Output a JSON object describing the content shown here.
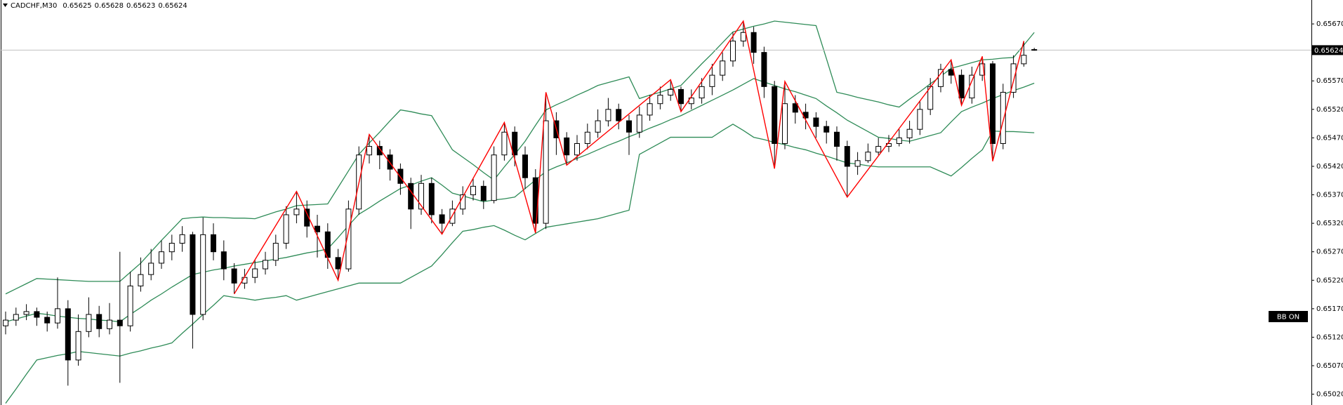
{
  "chart_data": {
    "type": "candlestick",
    "symbol": "CADCHF,M30",
    "indicator_label": "BB ON",
    "up_color": "#ffffff",
    "down_color": "#000000",
    "wick_color": "#000000",
    "open": [
      0.6514,
      0.6515,
      0.6516,
      0.65165,
      0.65155,
      0.65145,
      0.6517,
      0.6508,
      0.6513,
      0.6516,
      0.65135,
      0.6515,
      0.6514,
      0.6521,
      0.6523,
      0.6525,
      0.6527,
      0.65285,
      0.653,
      0.6516,
      0.653,
      0.6527,
      0.6524,
      0.65215,
      0.65225,
      0.6524,
      0.65255,
      0.65285,
      0.65335,
      0.65345,
      0.65315,
      0.65305,
      0.6526,
      0.6524,
      0.65345,
      0.6544,
      0.65455,
      0.6544,
      0.65415,
      0.6539,
      0.65345,
      0.6539,
      0.65335,
      0.6532,
      0.65345,
      0.6537,
      0.65385,
      0.6536,
      0.6544,
      0.6548,
      0.6544,
      0.654,
      0.6532,
      0.655,
      0.6547,
      0.6544,
      0.6546,
      0.6548,
      0.655,
      0.6552,
      0.655,
      0.6548,
      0.6551,
      0.6553,
      0.65545,
      0.65555,
      0.6553,
      0.6554,
      0.6556,
      0.6558,
      0.65605,
      0.6564,
      0.65655,
      0.6562,
      0.6556,
      0.6546,
      0.6553,
      0.65515,
      0.65505,
      0.6549,
      0.6548,
      0.65455,
      0.6542,
      0.6543,
      0.65445,
      0.65455,
      0.6546,
      0.6547,
      0.65485,
      0.6552,
      0.6556,
      0.6559,
      0.6558,
      0.6554,
      0.6558,
      0.656,
      0.6546,
      0.6555,
      0.656,
      0.65625
    ],
    "high": [
      0.65165,
      0.65172,
      0.65178,
      0.65172,
      0.65165,
      0.65225,
      0.65185,
      0.6516,
      0.6519,
      0.65175,
      0.6518,
      0.6527,
      0.65235,
      0.6526,
      0.65275,
      0.6529,
      0.653,
      0.65315,
      0.65305,
      0.6533,
      0.6532,
      0.6529,
      0.6525,
      0.6524,
      0.65255,
      0.6527,
      0.653,
      0.6535,
      0.65376,
      0.6536,
      0.65335,
      0.6532,
      0.65275,
      0.6536,
      0.65455,
      0.65476,
      0.65465,
      0.6545,
      0.65425,
      0.654,
      0.65405,
      0.654,
      0.65345,
      0.6536,
      0.65385,
      0.654,
      0.65395,
      0.65455,
      0.65497,
      0.6549,
      0.65455,
      0.65415,
      0.6555,
      0.65515,
      0.6548,
      0.65475,
      0.65495,
      0.6552,
      0.6554,
      0.6553,
      0.6551,
      0.65525,
      0.65545,
      0.6556,
      0.65572,
      0.6556,
      0.65555,
      0.65575,
      0.656,
      0.6562,
      0.65655,
      0.65675,
      0.65665,
      0.6563,
      0.6557,
      0.65569,
      0.65545,
      0.6553,
      0.65515,
      0.655,
      0.6549,
      0.65465,
      0.65445,
      0.6546,
      0.6547,
      0.65475,
      0.65485,
      0.655,
      0.65535,
      0.65575,
      0.656,
      0.65607,
      0.6559,
      0.65595,
      0.65613,
      0.65605,
      0.65565,
      0.65615,
      0.6564,
      0.65628
    ],
    "low": [
      0.65125,
      0.6514,
      0.6515,
      0.6514,
      0.6513,
      0.65135,
      0.65035,
      0.6507,
      0.6512,
      0.6512,
      0.65125,
      0.6504,
      0.6513,
      0.652,
      0.6522,
      0.6524,
      0.65255,
      0.6527,
      0.651,
      0.6515,
      0.65255,
      0.6522,
      0.65196,
      0.65205,
      0.65215,
      0.6523,
      0.65245,
      0.65275,
      0.6532,
      0.65295,
      0.6526,
      0.6524,
      0.6522,
      0.65235,
      0.65335,
      0.65425,
      0.65415,
      0.65395,
      0.6537,
      0.6531,
      0.65335,
      0.6532,
      0.65301,
      0.65315,
      0.65335,
      0.6536,
      0.65345,
      0.65355,
      0.6543,
      0.6542,
      0.6538,
      0.65303,
      0.6531,
      0.6544,
      0.65422,
      0.6543,
      0.6545,
      0.6547,
      0.6549,
      0.65485,
      0.6544,
      0.6547,
      0.655,
      0.6552,
      0.65535,
      0.65516,
      0.6552,
      0.6553,
      0.65545,
      0.6557,
      0.65595,
      0.6563,
      0.656,
      0.6554,
      0.65416,
      0.6545,
      0.65495,
      0.65485,
      0.6547,
      0.6546,
      0.6543,
      0.65366,
      0.65405,
      0.65426,
      0.6544,
      0.65445,
      0.65455,
      0.6546,
      0.65475,
      0.6551,
      0.6555,
      0.65565,
      0.65527,
      0.6553,
      0.6557,
      0.65429,
      0.6545,
      0.6554,
      0.65595,
      0.65623
    ],
    "close": [
      0.6515,
      0.6516,
      0.65165,
      0.65155,
      0.65145,
      0.6517,
      0.6508,
      0.6513,
      0.6516,
      0.65135,
      0.6515,
      0.6514,
      0.6521,
      0.6523,
      0.6525,
      0.6527,
      0.65285,
      0.653,
      0.6516,
      0.653,
      0.6527,
      0.6524,
      0.65215,
      0.65225,
      0.6524,
      0.65255,
      0.65285,
      0.65335,
      0.65345,
      0.65315,
      0.65305,
      0.6526,
      0.6524,
      0.65345,
      0.6544,
      0.65455,
      0.6544,
      0.65415,
      0.6539,
      0.65345,
      0.6539,
      0.65335,
      0.6532,
      0.65345,
      0.6537,
      0.65385,
      0.6536,
      0.6544,
      0.6548,
      0.6544,
      0.654,
      0.6532,
      0.655,
      0.6547,
      0.6544,
      0.6546,
      0.6548,
      0.655,
      0.6552,
      0.655,
      0.6548,
      0.6551,
      0.6553,
      0.65545,
      0.65555,
      0.6553,
      0.6554,
      0.6556,
      0.6558,
      0.65605,
      0.6564,
      0.65655,
      0.6562,
      0.6556,
      0.6546,
      0.6553,
      0.65515,
      0.65505,
      0.6549,
      0.6548,
      0.65455,
      0.6542,
      0.6543,
      0.65445,
      0.65455,
      0.6546,
      0.6547,
      0.65485,
      0.6552,
      0.6556,
      0.6559,
      0.6558,
      0.6554,
      0.6558,
      0.656,
      0.6546,
      0.6555,
      0.656,
      0.65615,
      0.65624
    ],
    "bands": {
      "color": "#2e8b57",
      "upper": [
        0.65196,
        0.65205,
        0.65214,
        0.65223,
        0.65222,
        0.65221,
        0.6522,
        0.65219,
        0.65218,
        0.65218,
        0.65218,
        0.65218,
        0.65234,
        0.6525,
        0.6527,
        0.6529,
        0.65309,
        0.65328,
        0.6533,
        0.65331,
        0.6533,
        0.6533,
        0.65329,
        0.65329,
        0.65328,
        0.65334,
        0.6534,
        0.65345,
        0.65351,
        0.65352,
        0.65353,
        0.65354,
        0.65383,
        0.65412,
        0.65441,
        0.65461,
        0.6548,
        0.655,
        0.65519,
        0.65516,
        0.65512,
        0.65509,
        0.65479,
        0.65449,
        0.65436,
        0.65423,
        0.65409,
        0.65396,
        0.65419,
        0.65441,
        0.65464,
        0.65492,
        0.65519,
        0.65528,
        0.65536,
        0.65545,
        0.65553,
        0.65562,
        0.65567,
        0.65572,
        0.65577,
        0.65539,
        0.65545,
        0.6555,
        0.65556,
        0.65562,
        0.65581,
        0.656,
        0.65618,
        0.65637,
        0.65656,
        0.65661,
        0.65666,
        0.6567,
        0.65675,
        0.65673,
        0.65671,
        0.65669,
        0.65667,
        0.65609,
        0.6555,
        0.65546,
        0.65541,
        0.65537,
        0.65533,
        0.65528,
        0.65524,
        0.65538,
        0.65551,
        0.65565,
        0.65578,
        0.65592,
        0.65597,
        0.65602,
        0.65607,
        0.65608,
        0.6561,
        0.65611,
        0.65633,
        0.65655
      ],
      "middle": [
        0.65147,
        0.65152,
        0.65157,
        0.65162,
        0.6516,
        0.65157,
        0.65155,
        0.65153,
        0.65152,
        0.6515,
        0.65149,
        0.65147,
        0.6516,
        0.65172,
        0.65185,
        0.65196,
        0.65208,
        0.65219,
        0.6523,
        0.65234,
        0.65238,
        0.65241,
        0.65245,
        0.65248,
        0.65251,
        0.65254,
        0.65257,
        0.6526,
        0.65264,
        0.65268,
        0.65271,
        0.65275,
        0.65295,
        0.65316,
        0.65336,
        0.65347,
        0.65359,
        0.6537,
        0.65381,
        0.65387,
        0.65394,
        0.654,
        0.65387,
        0.65373,
        0.65368,
        0.65363,
        0.65358,
        0.65361,
        0.65363,
        0.65366,
        0.65381,
        0.65396,
        0.65411,
        0.65419,
        0.65426,
        0.65434,
        0.65441,
        0.65449,
        0.65457,
        0.65464,
        0.65472,
        0.65479,
        0.65487,
        0.65494,
        0.65502,
        0.65509,
        0.65518,
        0.65527,
        0.65536,
        0.65545,
        0.65554,
        0.65564,
        0.65574,
        0.65568,
        0.65562,
        0.65556,
        0.65551,
        0.65545,
        0.65539,
        0.65526,
        0.65514,
        0.65501,
        0.65491,
        0.65481,
        0.65471,
        0.65469,
        0.65466,
        0.65464,
        0.65469,
        0.65474,
        0.65479,
        0.65498,
        0.65516,
        0.65524,
        0.65531,
        0.65539,
        0.65546,
        0.65553,
        0.65559,
        0.65566
      ],
      "lower": [
        0.65004,
        0.65029,
        0.65055,
        0.6508,
        0.65084,
        0.65088,
        0.65091,
        0.65095,
        0.65093,
        0.65091,
        0.65089,
        0.65087,
        0.65092,
        0.65096,
        0.65101,
        0.65105,
        0.6511,
        0.65127,
        0.65143,
        0.6516,
        0.65176,
        0.65193,
        0.6519,
        0.65188,
        0.65185,
        0.65188,
        0.6519,
        0.65193,
        0.65185,
        0.6519,
        0.65195,
        0.652,
        0.65205,
        0.6521,
        0.65215,
        0.65215,
        0.65215,
        0.65215,
        0.65215,
        0.65225,
        0.65235,
        0.65245,
        0.65265,
        0.65286,
        0.65306,
        0.65309,
        0.65313,
        0.65316,
        0.65308,
        0.65299,
        0.65291,
        0.65302,
        0.65313,
        0.65316,
        0.65319,
        0.65322,
        0.65325,
        0.65328,
        0.65333,
        0.65338,
        0.65343,
        0.65441,
        0.65451,
        0.65461,
        0.65471,
        0.65471,
        0.65471,
        0.65471,
        0.65471,
        0.65483,
        0.65494,
        0.65483,
        0.65471,
        0.65467,
        0.65462,
        0.65458,
        0.65453,
        0.65449,
        0.65443,
        0.65438,
        0.65432,
        0.65426,
        0.65424,
        0.65421,
        0.65419,
        0.65419,
        0.65419,
        0.65419,
        0.65419,
        0.65419,
        0.65411,
        0.65403,
        0.65418,
        0.65434,
        0.65449,
        0.65482,
        0.65481,
        0.65481,
        0.6548,
        0.65479
      ]
    },
    "zigzag": {
      "color": "#ff0000",
      "x": [
        22,
        28,
        32,
        35,
        42,
        48,
        51,
        52,
        54,
        64,
        65,
        71,
        74,
        75,
        81,
        91,
        92,
        94,
        95,
        98
      ],
      "values": [
        0.65196,
        0.65376,
        0.6522,
        0.65476,
        0.65301,
        0.65497,
        0.65303,
        0.6555,
        0.65422,
        0.65572,
        0.65516,
        0.65675,
        0.65416,
        0.65569,
        0.65366,
        0.65607,
        0.65527,
        0.65613,
        0.65429,
        0.6564
      ]
    },
    "ylim": [
      0.65001,
      0.65712
    ],
    "yticks": [
      {
        "value": 0.6567,
        "label": "0.65670"
      },
      {
        "value": 0.6557,
        "label": "0.65570"
      },
      {
        "value": 0.6552,
        "label": "0.65520"
      },
      {
        "value": 0.6547,
        "label": "0.65470"
      },
      {
        "value": 0.6542,
        "label": "0.65420"
      },
      {
        "value": 0.6537,
        "label": "0.65370"
      },
      {
        "value": 0.6532,
        "label": "0.65320"
      },
      {
        "value": 0.6527,
        "label": "0.65270"
      },
      {
        "value": 0.6522,
        "label": "0.65220"
      },
      {
        "value": 0.6517,
        "label": "0.65170"
      },
      {
        "value": 0.6512,
        "label": "0.65120"
      },
      {
        "value": 0.6507,
        "label": "0.65070"
      },
      {
        "value": 0.6502,
        "label": "0.65020"
      }
    ],
    "grid": false
  }
}
